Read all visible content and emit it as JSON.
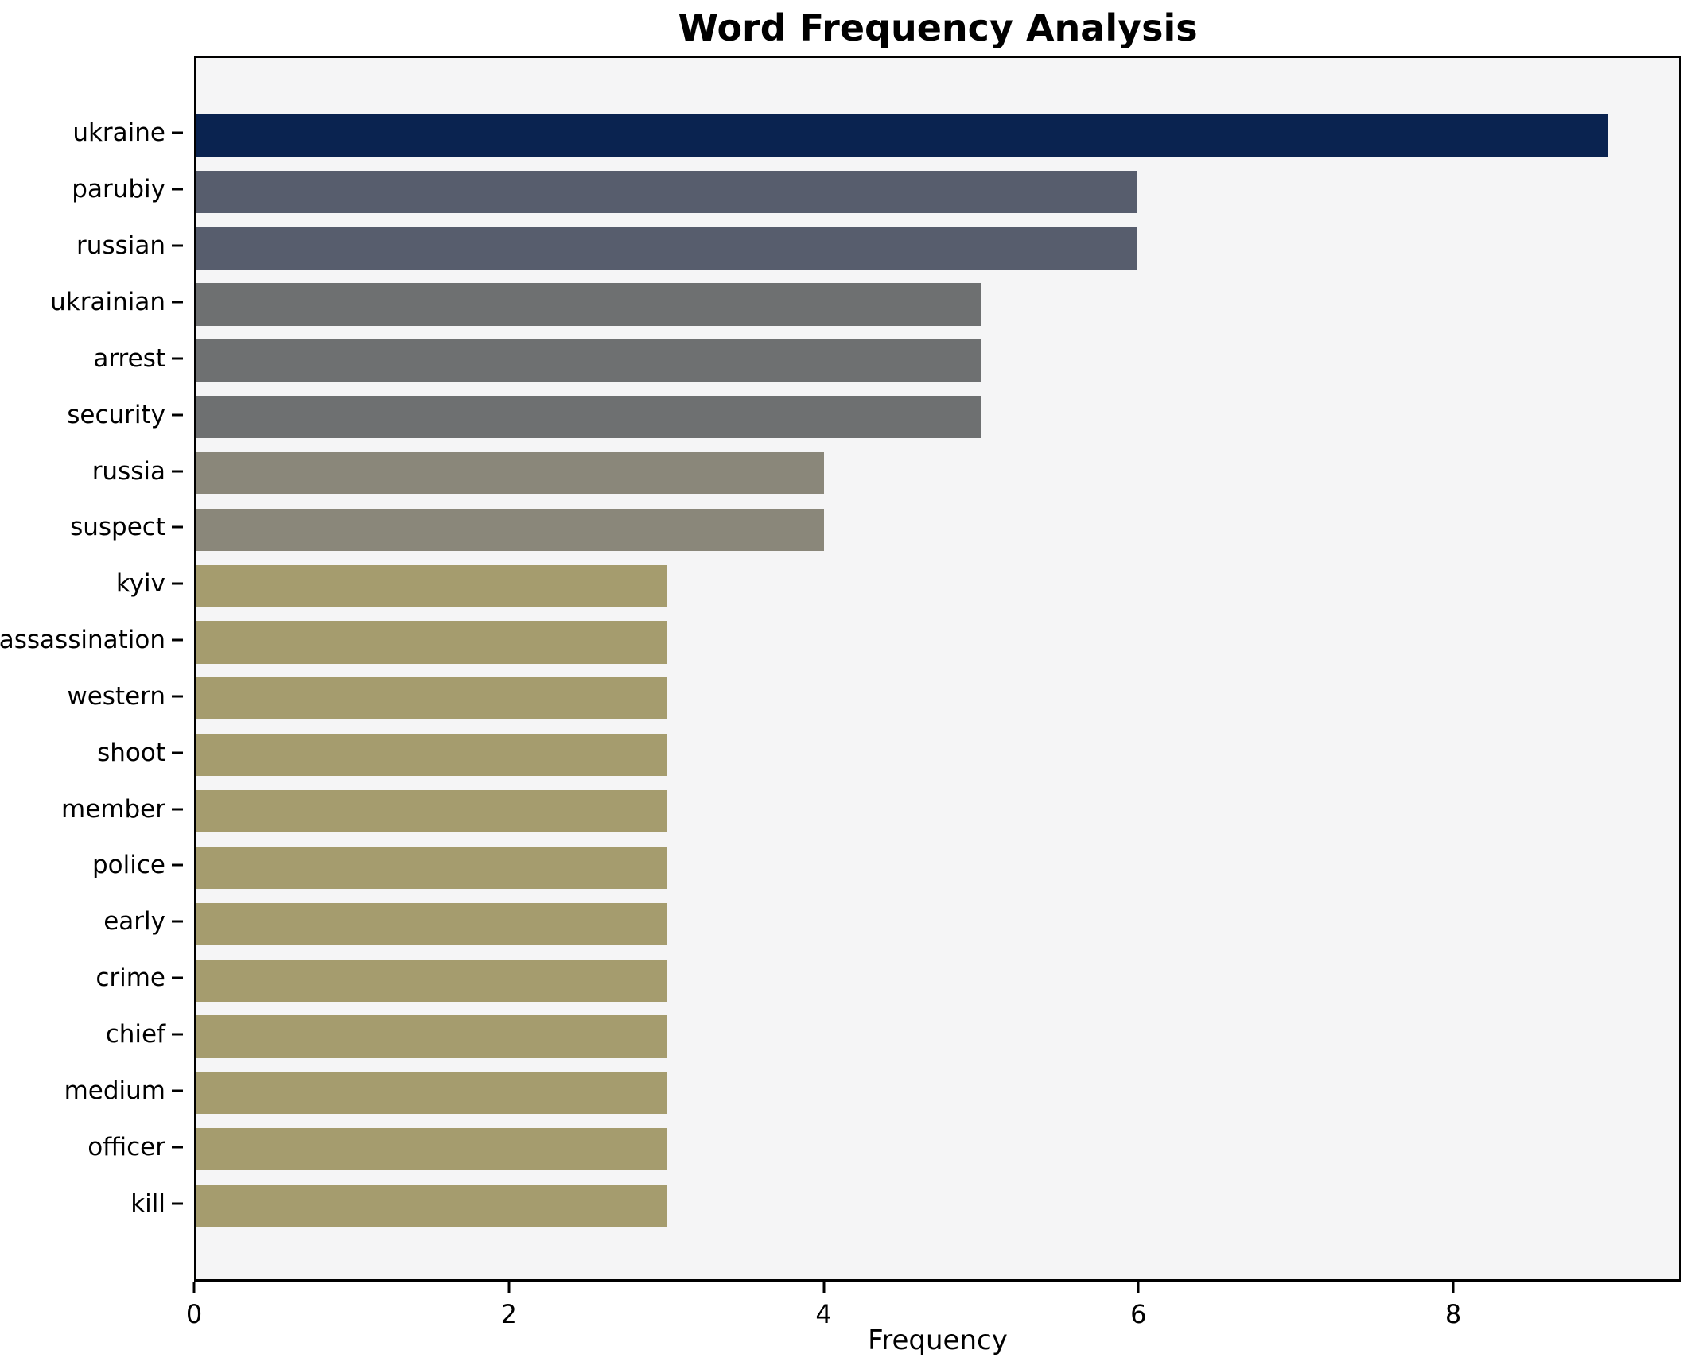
{
  "chart_data": {
    "type": "bar",
    "orientation": "horizontal",
    "title": "Word Frequency Analysis",
    "xlabel": "Frequency",
    "ylabel": "",
    "xlim": [
      0,
      9.45
    ],
    "x_ticks": [
      0,
      2,
      4,
      6,
      8
    ],
    "grid": false,
    "legend": "none",
    "categories": [
      "ukraine",
      "parubiy",
      "russian",
      "ukrainian",
      "arrest",
      "security",
      "russia",
      "suspect",
      "kyiv",
      "assassination",
      "western",
      "shoot",
      "member",
      "police",
      "early",
      "crime",
      "chief",
      "medium",
      "officer",
      "kill"
    ],
    "values": [
      9,
      6,
      6,
      5,
      5,
      5,
      4,
      4,
      3,
      3,
      3,
      3,
      3,
      3,
      3,
      3,
      3,
      3,
      3,
      3
    ],
    "bar_colors": [
      "#0a2350",
      "#575d6d",
      "#575d6d",
      "#6e7071",
      "#6e7071",
      "#6e7071",
      "#8a877a",
      "#8a877a",
      "#a59c6e",
      "#a59c6e",
      "#a59c6e",
      "#a59c6e",
      "#a59c6e",
      "#a59c6e",
      "#a59c6e",
      "#a59c6e",
      "#a59c6e",
      "#a59c6e",
      "#a59c6e",
      "#a59c6e"
    ],
    "colors": {
      "plot_background": "#f5f5f6",
      "figure_background": "#ffffff",
      "axis_frame": "#000000",
      "text": "#000000"
    }
  }
}
